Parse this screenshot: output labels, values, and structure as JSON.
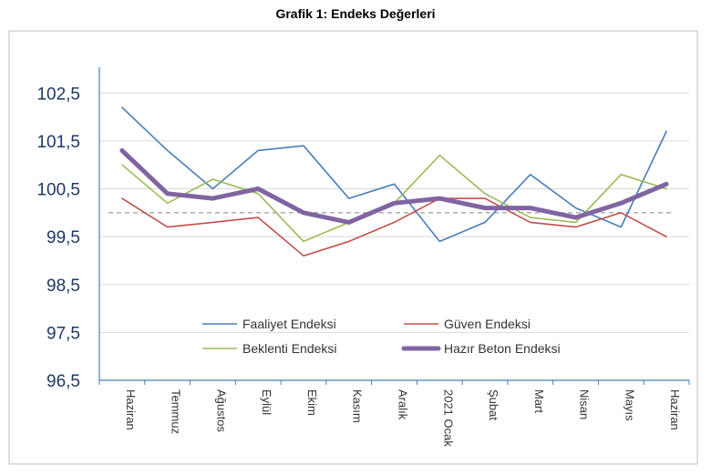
{
  "page": {
    "title": "Grafik 1: Endeks Değerleri"
  },
  "chart_data": {
    "type": "line",
    "title": "Grafik 1: Endeks Değerleri",
    "categories": [
      "Haziran",
      "Temmuz",
      "Ağustos",
      "Eylül",
      "Ekim",
      "Kasım",
      "Aralık",
      "2021 Ocak",
      "Şubat",
      "Mart",
      "Nisan",
      "Mayıs",
      "Haziran"
    ],
    "ylim": [
      96.5,
      103.0
    ],
    "yticks": [
      96.5,
      97.5,
      98.5,
      99.5,
      100.5,
      101.5,
      102.5
    ],
    "ytick_labels": [
      "96,5",
      "97,5",
      "98,5",
      "99,5",
      "100,5",
      "101,5",
      "102,5"
    ],
    "reference_line": {
      "value": 100.0,
      "style": "dashed",
      "color": "#a6a6a6"
    },
    "grid": true,
    "legend_position": "bottom-center",
    "series": [
      {
        "name": "Faaliyet Endeksi",
        "color": "#4a7ebb",
        "width": 1.6,
        "values": [
          102.2,
          101.3,
          100.5,
          101.3,
          101.4,
          100.3,
          100.6,
          99.4,
          99.8,
          100.8,
          100.1,
          99.7,
          101.7
        ]
      },
      {
        "name": "Güven Endeksi",
        "color": "#c0504d",
        "width": 1.6,
        "values": [
          100.3,
          99.7,
          99.8,
          99.9,
          99.1,
          99.4,
          99.8,
          100.3,
          100.3,
          99.8,
          99.7,
          100.0,
          99.5
        ]
      },
      {
        "name": "Beklenti Endeksi",
        "color": "#9bbb59",
        "width": 1.6,
        "values": [
          101.0,
          100.2,
          100.7,
          100.4,
          99.4,
          99.8,
          100.2,
          101.2,
          100.4,
          99.9,
          99.8,
          100.8,
          100.5
        ]
      },
      {
        "name": "Hazır Beton Endeksi",
        "color": "#8064a2",
        "width": 5,
        "values": [
          101.3,
          100.4,
          100.3,
          100.5,
          100.0,
          99.8,
          100.2,
          100.3,
          100.1,
          100.1,
          99.9,
          100.2,
          100.6
        ]
      }
    ]
  }
}
